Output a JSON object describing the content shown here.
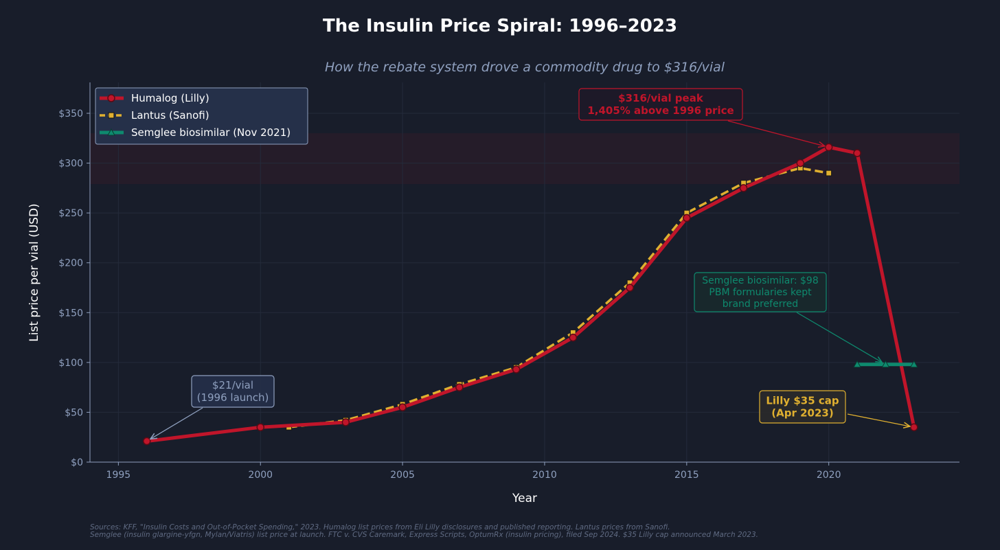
{
  "chart_data": {
    "type": "line",
    "title": "The Insulin Price Spiral: 1996–2023",
    "subtitle": "How the rebate system drove a commodity drug to $316/vial",
    "xlabel": "Year",
    "ylabel": "List price per vial (USD)",
    "xlim": [
      1994,
      2024.6
    ],
    "ylim": [
      0,
      381
    ],
    "xticks": [
      1995,
      2000,
      2005,
      2010,
      2015,
      2020
    ],
    "yticks": [
      0,
      50,
      100,
      150,
      200,
      250,
      300,
      350
    ],
    "ytick_labels": [
      "$0",
      "$50",
      "$100",
      "$150",
      "$200",
      "$250",
      "$300",
      "$350"
    ],
    "grid": true,
    "legend_position": "top-left",
    "highlight_band": [
      279,
      330
    ],
    "series": [
      {
        "name": "Humalog (Lilly)",
        "color": "#c0152a",
        "style": "solid-circle",
        "x": [
          1996,
          2000,
          2003,
          2005,
          2007,
          2009,
          2011,
          2013,
          2015,
          2017,
          2019,
          2020,
          2021,
          2023
        ],
        "y": [
          21,
          35,
          40,
          55,
          75,
          93,
          125,
          175,
          245,
          275,
          300,
          316,
          310,
          35
        ]
      },
      {
        "name": "Lantus (Sanofi)",
        "color": "#e0b030",
        "style": "dashed-square",
        "x": [
          2001,
          2003,
          2005,
          2007,
          2009,
          2011,
          2013,
          2015,
          2017,
          2019,
          2020
        ],
        "y": [
          35,
          42,
          58,
          78,
          95,
          130,
          180,
          250,
          280,
          295,
          290
        ]
      },
      {
        "name": "Semglee biosimilar (Nov 2021)",
        "color": "#0e8a6e",
        "style": "solid-triangle",
        "x": [
          2021,
          2022,
          2023
        ],
        "y": [
          98,
          98,
          98
        ]
      }
    ],
    "annotations": [
      {
        "lines": [
          "$316/vial peak",
          "1,405% above 1996 price"
        ],
        "color": "#c0152a",
        "target": [
          2020,
          316
        ]
      },
      {
        "lines": [
          "Semglee biosimilar: $98",
          "PBM formularies kept",
          "brand preferred"
        ],
        "color": "#0e8a6e",
        "target": [
          2022,
          98
        ]
      },
      {
        "lines": [
          "$21/vial",
          "(1996 launch)"
        ],
        "color": "#8fa0bf",
        "target": [
          1996,
          21
        ]
      },
      {
        "lines": [
          "Lilly $35 cap",
          "(Apr 2023)"
        ],
        "color": "#e0b030",
        "target": [
          2023,
          35
        ]
      }
    ],
    "sources": [
      "Sources: KFF, \"Insulin Costs and Out-of-Pocket Spending,\" 2023. Humalog list prices from Eli Lilly disclosures and published reporting. Lantus prices from Sanofi.",
      "Semglee (insulin glargine-yfgn, Mylan/Viatris) list price at launch. FTC v. CVS Caremark, Express Scripts, OptumRx (insulin pricing), filed Sep 2024. $35 Lilly cap announced March 2023."
    ]
  }
}
